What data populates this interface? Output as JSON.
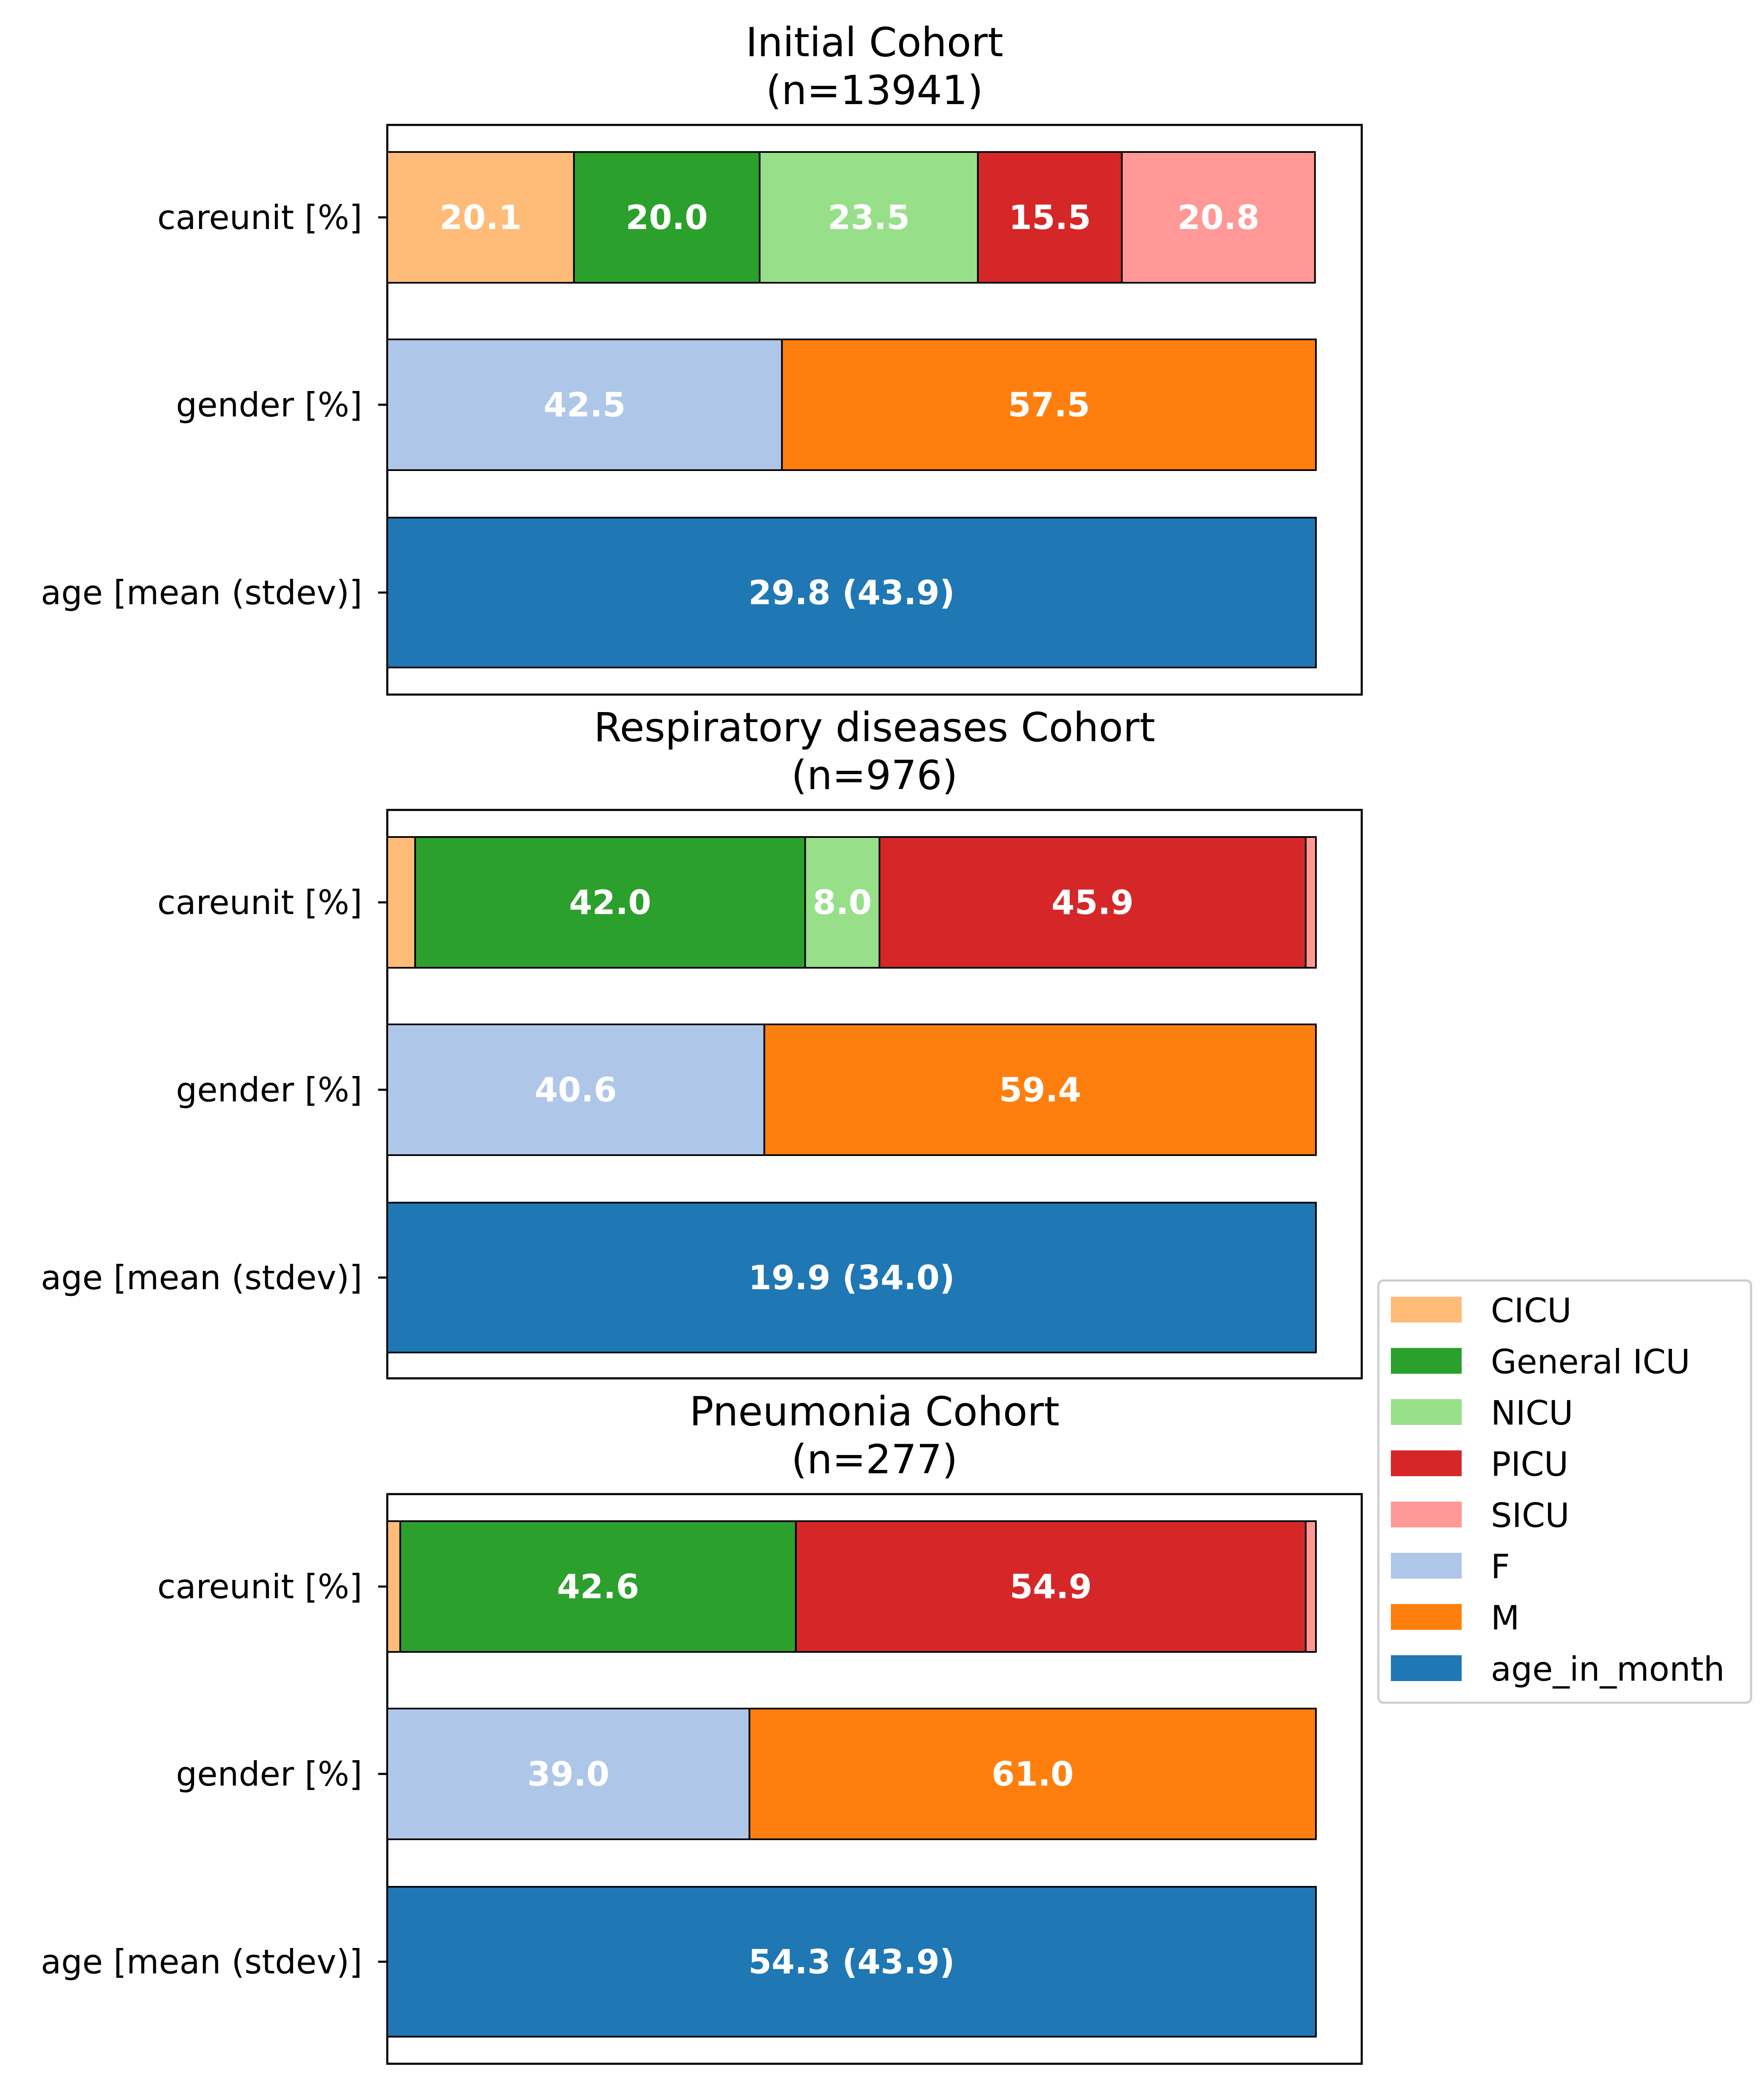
{
  "colors": {
    "CICU": "#ffbb78",
    "General ICU": "#2ca02c",
    "NICU": "#98df8a",
    "PICU": "#d62728",
    "SICU": "#ff9896",
    "F": "#aec7e8",
    "M": "#ff7f0e",
    "age_in_month": "#1f77b4"
  },
  "chart_data": {
    "type": "bar",
    "orientation": "horizontal-stacked",
    "legend": {
      "placement": "center-right",
      "entries": [
        "CICU",
        "General ICU",
        "NICU",
        "PICU",
        "SICU",
        "F",
        "M",
        "age_in_month"
      ]
    },
    "row_labels": [
      "careunit [%]",
      "gender [%]",
      "age [mean (stdev)]"
    ],
    "panels": [
      {
        "title_line1": "Initial Cohort",
        "title_line2": "(n=13941)",
        "careunit": [
          {
            "name": "CICU",
            "value": 20.1,
            "label": "20.1"
          },
          {
            "name": "General ICU",
            "value": 20.0,
            "label": "20.0"
          },
          {
            "name": "NICU",
            "value": 23.5,
            "label": "23.5"
          },
          {
            "name": "PICU",
            "value": 15.5,
            "label": "15.5"
          },
          {
            "name": "SICU",
            "value": 20.8,
            "label": "20.8"
          }
        ],
        "gender": [
          {
            "name": "F",
            "value": 42.5,
            "label": "42.5"
          },
          {
            "name": "M",
            "value": 57.5,
            "label": "57.5"
          }
        ],
        "age": {
          "mean": 29.8,
          "stdev": 43.9,
          "label": "29.8 (43.9)"
        }
      },
      {
        "title_line1": "Respiratory diseases Cohort",
        "title_line2": "(n=976)",
        "careunit": [
          {
            "name": "CICU",
            "value": 3.0,
            "label": ""
          },
          {
            "name": "General ICU",
            "value": 42.0,
            "label": "42.0"
          },
          {
            "name": "NICU",
            "value": 8.0,
            "label": "8.0"
          },
          {
            "name": "PICU",
            "value": 45.9,
            "label": "45.9"
          },
          {
            "name": "SICU",
            "value": 1.1,
            "label": ""
          }
        ],
        "gender": [
          {
            "name": "F",
            "value": 40.6,
            "label": "40.6"
          },
          {
            "name": "M",
            "value": 59.4,
            "label": "59.4"
          }
        ],
        "age": {
          "mean": 19.9,
          "stdev": 34.0,
          "label": "19.9 (34.0)"
        }
      },
      {
        "title_line1": "Pneumonia Cohort",
        "title_line2": "(n=277)",
        "careunit": [
          {
            "name": "CICU",
            "value": 1.4,
            "label": ""
          },
          {
            "name": "General ICU",
            "value": 42.6,
            "label": "42.6"
          },
          {
            "name": "PICU",
            "value": 54.9,
            "label": "54.9"
          },
          {
            "name": "SICU",
            "value": 1.1,
            "label": ""
          }
        ],
        "gender": [
          {
            "name": "F",
            "value": 39.0,
            "label": "39.0"
          },
          {
            "name": "M",
            "value": 61.0,
            "label": "61.0"
          }
        ],
        "age": {
          "mean": 54.3,
          "stdev": 43.9,
          "label": "54.3 (43.9)"
        }
      }
    ]
  }
}
